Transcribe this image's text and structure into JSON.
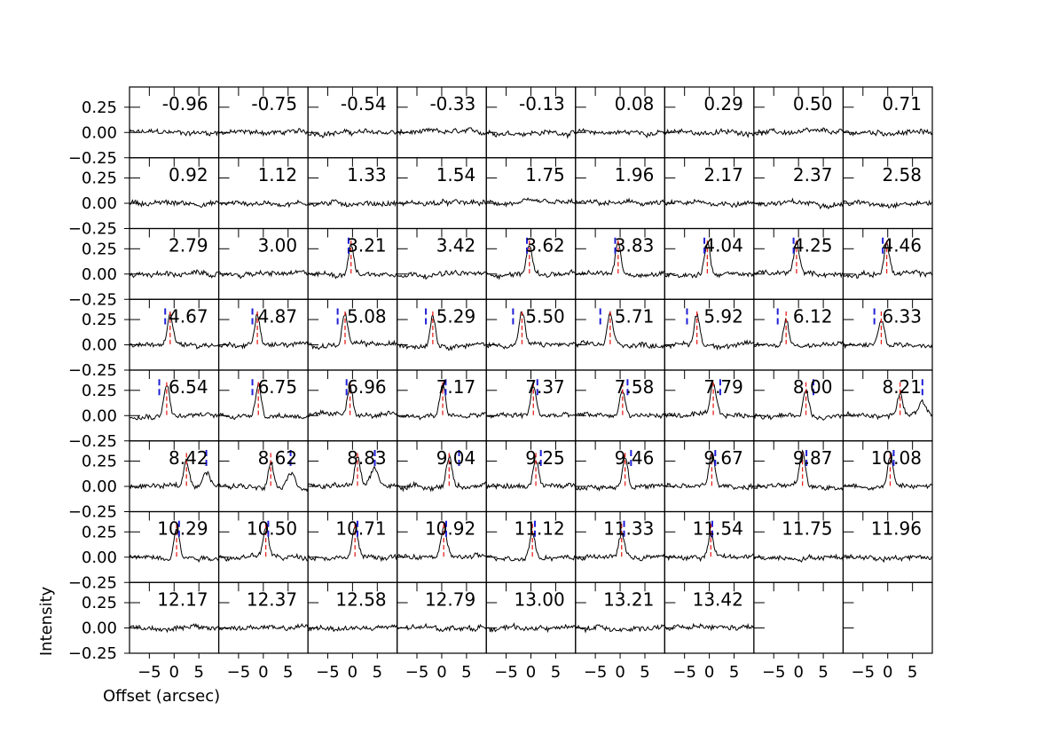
{
  "chart_data": {
    "type": "line",
    "xlabel": "Offset (arcsec)",
    "ylabel": "Intensity",
    "xlim": [
      -9,
      9
    ],
    "ylim": [
      -0.25,
      0.45
    ],
    "xticks": [
      -5,
      0,
      5
    ],
    "xtick_labels": [
      "−5",
      "0",
      "5"
    ],
    "yticks": [
      -0.25,
      0.0,
      0.25
    ],
    "ytick_labels": [
      "−0.25",
      "0.00",
      "0.25"
    ],
    "grid": false,
    "colors": {
      "trace": "#000000",
      "red_marker": "#e8211d",
      "blue_marker": "#1f1fd8"
    },
    "rows": 8,
    "cols": 9,
    "panels": [
      {
        "label": "-0.96",
        "peak": 0
      },
      {
        "label": "-0.75",
        "peak": 0
      },
      {
        "label": "-0.54",
        "peak": 0
      },
      {
        "label": "-0.33",
        "peak": 0
      },
      {
        "label": "-0.13",
        "peak": 0
      },
      {
        "label": "0.08",
        "peak": 0
      },
      {
        "label": "0.29",
        "peak": 0
      },
      {
        "label": "0.50",
        "peak": 0
      },
      {
        "label": "0.71",
        "peak": 0
      },
      {
        "label": "0.92",
        "peak": 0
      },
      {
        "label": "1.12",
        "peak": 0
      },
      {
        "label": "1.33",
        "peak": 0
      },
      {
        "label": "1.54",
        "peak": 0
      },
      {
        "label": "1.75",
        "peak": 0
      },
      {
        "label": "1.96",
        "peak": 0
      },
      {
        "label": "2.17",
        "peak": 0
      },
      {
        "label": "2.37",
        "peak": 0
      },
      {
        "label": "2.58",
        "peak": 0
      },
      {
        "label": "2.79",
        "peak": 0
      },
      {
        "label": "3.00",
        "peak": 0
      },
      {
        "label": "3.21",
        "peak": 0.3,
        "red": -0.3,
        "blue": [
          -0.8
        ]
      },
      {
        "label": "3.42",
        "peak": 0
      },
      {
        "label": "3.62",
        "peak": 0.3,
        "red": -0.3,
        "blue": [
          -0.8
        ]
      },
      {
        "label": "3.83",
        "peak": 0.32,
        "red": -0.4,
        "blue": [
          -1.0
        ]
      },
      {
        "label": "4.04",
        "peak": 0.32,
        "red": -0.4,
        "blue": [
          -1.0
        ]
      },
      {
        "label": "4.25",
        "peak": 0.32,
        "red": -0.4,
        "blue": [
          -1.0
        ]
      },
      {
        "label": "4.46",
        "peak": 0.3,
        "red": -0.2,
        "blue": [
          -1.0
        ]
      },
      {
        "label": "4.67",
        "peak": 0.3,
        "red": -0.8,
        "blue": [
          -1.8
        ]
      },
      {
        "label": "4.87",
        "peak": 0.3,
        "red": -1.2,
        "blue": [
          -2.2
        ]
      },
      {
        "label": "5.08",
        "peak": 0.3,
        "red": -1.5,
        "blue": [
          -3.0
        ]
      },
      {
        "label": "5.29",
        "peak": 0.3,
        "red": -1.8,
        "blue": [
          -3.2
        ]
      },
      {
        "label": "5.50",
        "peak": 0.33,
        "red": -1.8,
        "blue": [
          -3.6
        ]
      },
      {
        "label": "5.71",
        "peak": 0.3,
        "red": -2.0,
        "blue": [
          -4.0
        ]
      },
      {
        "label": "5.92",
        "peak": 0.3,
        "red": -2.5,
        "blue": [
          -4.5
        ]
      },
      {
        "label": "6.12",
        "peak": 0.25,
        "red": -2.5,
        "blue": [
          -4.2
        ]
      },
      {
        "label": "6.33",
        "peak": 0.25,
        "red": -1.3,
        "blue": [
          -2.7
        ]
      },
      {
        "label": "6.54",
        "peak": 0.33,
        "red": -1.5,
        "blue": [
          -3.0
        ]
      },
      {
        "label": "6.75",
        "peak": 0.33,
        "red": -1.0,
        "blue": [
          -2.2
        ]
      },
      {
        "label": "6.96",
        "peak": 0.3,
        "red": -0.5,
        "blue": [
          -1.2
        ]
      },
      {
        "label": "7.17",
        "peak": 0.32,
        "red": 0.2,
        "blue": [
          0.8
        ]
      },
      {
        "label": "7.37",
        "peak": 0.28,
        "red": 0.5,
        "blue": [
          1.3
        ]
      },
      {
        "label": "7.58",
        "peak": 0.25,
        "red": 0.5,
        "blue": [
          1.5
        ]
      },
      {
        "label": "7.79",
        "peak": 0.3,
        "red": 0.8,
        "blue": [
          2.2
        ]
      },
      {
        "label": "8.00",
        "peak": 0.25,
        "red": 1.5,
        "blue": [
          3.0
        ]
      },
      {
        "label": "8.21",
        "peak": 0.22,
        "red": 2.5,
        "blue": [
          7.0
        ]
      },
      {
        "label": "8.42",
        "peak": 0.25,
        "red": 2.5,
        "blue": [
          6.5
        ]
      },
      {
        "label": "8.62",
        "peak": 0.25,
        "red": 1.5,
        "blue": [
          5.5
        ]
      },
      {
        "label": "8.83",
        "peak": 0.3,
        "red": 1.0,
        "blue": [
          4.5
        ]
      },
      {
        "label": "9.04",
        "peak": 0.3,
        "red": 1.5,
        "blue": [
          3.5
        ]
      },
      {
        "label": "9.25",
        "peak": 0.28,
        "red": 1.0,
        "blue": [
          2.0
        ]
      },
      {
        "label": "9.46",
        "peak": 0.3,
        "red": 1.0,
        "blue": [
          2.2
        ]
      },
      {
        "label": "9.67",
        "peak": 0.33,
        "red": 0.5,
        "blue": [
          1.2
        ]
      },
      {
        "label": "9.87",
        "peak": 0.33,
        "red": 0.8,
        "blue": [
          1.6
        ]
      },
      {
        "label": "10.08",
        "peak": 0.3,
        "red": 0.5,
        "blue": [
          1.2
        ]
      },
      {
        "label": "10.29",
        "peak": 0.3,
        "red": 0.5,
        "blue": [
          1.0
        ]
      },
      {
        "label": "10.50",
        "peak": 0.3,
        "red": 0.5,
        "blue": [
          1.0
        ]
      },
      {
        "label": "10.71",
        "peak": 0.3,
        "red": 0.5,
        "blue": [
          1.0
        ]
      },
      {
        "label": "10.92",
        "peak": 0.3,
        "red": 0.4,
        "blue": [
          0.9
        ]
      },
      {
        "label": "11.12",
        "peak": 0.25,
        "red": 0.3,
        "blue": [
          0.8
        ]
      },
      {
        "label": "11.33",
        "peak": 0.25,
        "red": 0.3,
        "blue": [
          0.8
        ]
      },
      {
        "label": "11.54",
        "peak": 0.22,
        "red": 0.3,
        "blue": [
          0.6
        ]
      },
      {
        "label": "11.75",
        "peak": 0
      },
      {
        "label": "11.96",
        "peak": 0
      },
      {
        "label": "12.17",
        "peak": 0
      },
      {
        "label": "12.37",
        "peak": 0
      },
      {
        "label": "12.58",
        "peak": 0
      },
      {
        "label": "12.79",
        "peak": 0
      },
      {
        "label": "13.00",
        "peak": 0
      },
      {
        "label": "13.21",
        "peak": 0
      },
      {
        "label": "13.42",
        "peak": 0
      },
      {
        "label": "",
        "empty": true
      },
      {
        "label": "",
        "empty": true
      }
    ]
  }
}
